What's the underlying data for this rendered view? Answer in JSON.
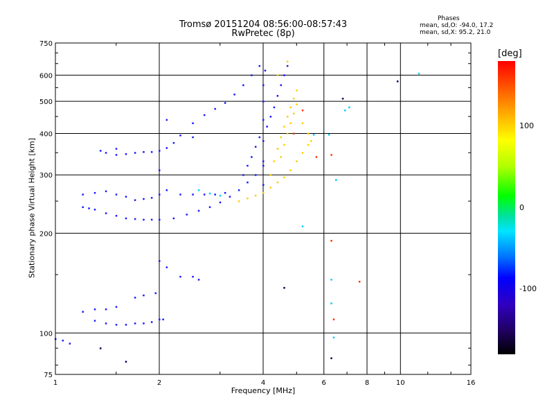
{
  "header": {
    "title": "Tromsø 20151204 08:56:00-08:57:43",
    "subtitle": "RwPretec (8p)",
    "phases_label": "Phases",
    "stats_o": "mean, sd,O:  -94.0, 17.2",
    "stats_x": "mean, sd,X:  95.2, 21.0"
  },
  "colorbar": {
    "title": "[deg]",
    "ticks": [
      "100",
      "0",
      "-100"
    ],
    "tick_values": [
      100,
      0,
      -100
    ]
  },
  "chart_data": {
    "type": "scatter",
    "xlabel": "Frequency [MHz]",
    "ylabel": "Stationary phase Virtual Height [km]",
    "xscale": "log",
    "yscale": "log",
    "xlim": [
      1,
      16
    ],
    "ylim": [
      75,
      750
    ],
    "xticks": [
      1,
      2,
      4,
      6,
      8,
      10,
      16
    ],
    "xtick_labels": [
      "1",
      "2",
      "4",
      "6",
      "8",
      "10",
      "16"
    ],
    "yticks": [
      75,
      100,
      200,
      300,
      400,
      500,
      600,
      750
    ],
    "ytick_labels": [
      "75",
      "100",
      "200",
      "300",
      "400",
      "500",
      "600",
      "750"
    ],
    "x_gridlines": [
      2,
      4,
      6,
      8,
      10
    ],
    "y_gridlines": [
      100,
      200,
      300,
      400,
      500,
      600
    ],
    "grid": true,
    "colors": {
      "o_mode": "#0000ff",
      "x_mode": "#ffcc00",
      "colorbar_range": [
        -180,
        180
      ]
    },
    "series": [
      {
        "mode": "O",
        "color": "#1a1aff",
        "points": [
          [
            1.0,
            96
          ],
          [
            1.05,
            95
          ],
          [
            1.1,
            93
          ],
          [
            1.2,
            116
          ],
          [
            1.3,
            109
          ],
          [
            1.4,
            107
          ],
          [
            1.5,
            106
          ],
          [
            1.6,
            106
          ],
          [
            1.7,
            107
          ],
          [
            1.8,
            107
          ],
          [
            1.9,
            108
          ],
          [
            2.0,
            110
          ],
          [
            2.05,
            110
          ],
          [
            1.3,
            118
          ],
          [
            1.4,
            118
          ],
          [
            1.5,
            120
          ],
          [
            1.7,
            128
          ],
          [
            1.8,
            130
          ],
          [
            1.95,
            132
          ],
          [
            2.1,
            158
          ],
          [
            2.0,
            165
          ],
          [
            2.3,
            148
          ],
          [
            2.5,
            148
          ],
          [
            2.6,
            145
          ],
          [
            1.2,
            262
          ],
          [
            1.2,
            240
          ],
          [
            1.25,
            238
          ],
          [
            1.3,
            236
          ],
          [
            1.4,
            230
          ],
          [
            1.5,
            226
          ],
          [
            1.6,
            222
          ],
          [
            1.7,
            221
          ],
          [
            1.8,
            220
          ],
          [
            1.9,
            220
          ],
          [
            2.0,
            220
          ],
          [
            2.2,
            222
          ],
          [
            2.4,
            228
          ],
          [
            2.6,
            234
          ],
          [
            2.8,
            240
          ],
          [
            3.0,
            248
          ],
          [
            3.2,
            258
          ],
          [
            3.4,
            270
          ],
          [
            3.6,
            285
          ],
          [
            3.8,
            300
          ],
          [
            4.0,
            320
          ],
          [
            1.3,
            265
          ],
          [
            1.4,
            268
          ],
          [
            1.5,
            262
          ],
          [
            1.6,
            258
          ],
          [
            1.7,
            252
          ],
          [
            1.8,
            254
          ],
          [
            1.9,
            256
          ],
          [
            2.0,
            262
          ],
          [
            2.1,
            270
          ],
          [
            2.3,
            262
          ],
          [
            2.5,
            262
          ],
          [
            2.7,
            262
          ],
          [
            2.9,
            262
          ],
          [
            3.1,
            265
          ],
          [
            1.35,
            355
          ],
          [
            1.4,
            350
          ],
          [
            1.5,
            345
          ],
          [
            1.6,
            347
          ],
          [
            1.7,
            350
          ],
          [
            1.8,
            352
          ],
          [
            1.9,
            352
          ],
          [
            2.0,
            355
          ],
          [
            2.1,
            362
          ],
          [
            2.2,
            375
          ],
          [
            2.3,
            395
          ],
          [
            2.5,
            430
          ],
          [
            2.7,
            455
          ],
          [
            2.9,
            475
          ],
          [
            3.1,
            495
          ],
          [
            3.3,
            525
          ],
          [
            3.5,
            560
          ],
          [
            3.7,
            600
          ],
          [
            3.9,
            640
          ],
          [
            4.0,
            280
          ],
          [
            4.0,
            330
          ],
          [
            4.0,
            380
          ],
          [
            4.0,
            440
          ],
          [
            4.0,
            500
          ],
          [
            4.0,
            560
          ],
          [
            4.05,
            620
          ],
          [
            3.5,
            300
          ],
          [
            3.6,
            320
          ],
          [
            3.7,
            340
          ],
          [
            3.8,
            365
          ],
          [
            3.9,
            390
          ],
          [
            4.1,
            420
          ],
          [
            4.2,
            450
          ],
          [
            4.3,
            480
          ],
          [
            4.4,
            520
          ],
          [
            4.5,
            560
          ],
          [
            4.6,
            600
          ],
          [
            4.7,
            640
          ],
          [
            1.5,
            360
          ],
          [
            2.1,
            440
          ],
          [
            2.5,
            390
          ],
          [
            2.0,
            310
          ]
        ]
      },
      {
        "mode": "X",
        "color": "#ffcc00",
        "points": [
          [
            3.4,
            250
          ],
          [
            3.6,
            255
          ],
          [
            3.8,
            260
          ],
          [
            4.0,
            265
          ],
          [
            4.2,
            275
          ],
          [
            4.4,
            285
          ],
          [
            4.6,
            295
          ],
          [
            4.8,
            310
          ],
          [
            5.0,
            330
          ],
          [
            5.2,
            350
          ],
          [
            5.4,
            370
          ],
          [
            4.2,
            300
          ],
          [
            4.3,
            330
          ],
          [
            4.4,
            360
          ],
          [
            4.5,
            390
          ],
          [
            4.6,
            420
          ],
          [
            4.7,
            450
          ],
          [
            4.8,
            480
          ],
          [
            4.9,
            510
          ],
          [
            5.0,
            540
          ],
          [
            4.5,
            340
          ],
          [
            4.6,
            370
          ],
          [
            4.7,
            400
          ],
          [
            4.8,
            430
          ],
          [
            4.9,
            460
          ],
          [
            5.0,
            490
          ],
          [
            5.2,
            430
          ],
          [
            5.4,
            400
          ],
          [
            5.5,
            380
          ],
          [
            4.4,
            600
          ],
          [
            4.7,
            660
          ]
        ]
      },
      {
        "mode": "other",
        "color": "#00ccff",
        "points": [
          [
            2.6,
            270
          ],
          [
            2.8,
            264
          ],
          [
            3.0,
            260
          ],
          [
            5.6,
            397
          ],
          [
            6.2,
            397
          ],
          [
            6.5,
            290
          ],
          [
            6.3,
            145
          ],
          [
            6.3,
            123
          ],
          [
            6.4,
            97
          ],
          [
            6.9,
            470
          ],
          [
            7.1,
            480
          ],
          [
            11.3,
            607
          ],
          [
            5.2,
            210
          ]
        ]
      },
      {
        "mode": "other",
        "color": "#ff3300",
        "points": [
          [
            4.9,
            400
          ],
          [
            5.2,
            470
          ],
          [
            6.3,
            190
          ],
          [
            6.4,
            110
          ],
          [
            7.6,
            143
          ],
          [
            5.7,
            340
          ],
          [
            6.3,
            345
          ]
        ]
      },
      {
        "mode": "other",
        "color": "#000060",
        "points": [
          [
            4.6,
            137
          ],
          [
            6.3,
            84
          ],
          [
            6.8,
            510
          ],
          [
            9.8,
            575
          ],
          [
            1.6,
            82
          ],
          [
            1.35,
            90
          ]
        ]
      }
    ]
  }
}
